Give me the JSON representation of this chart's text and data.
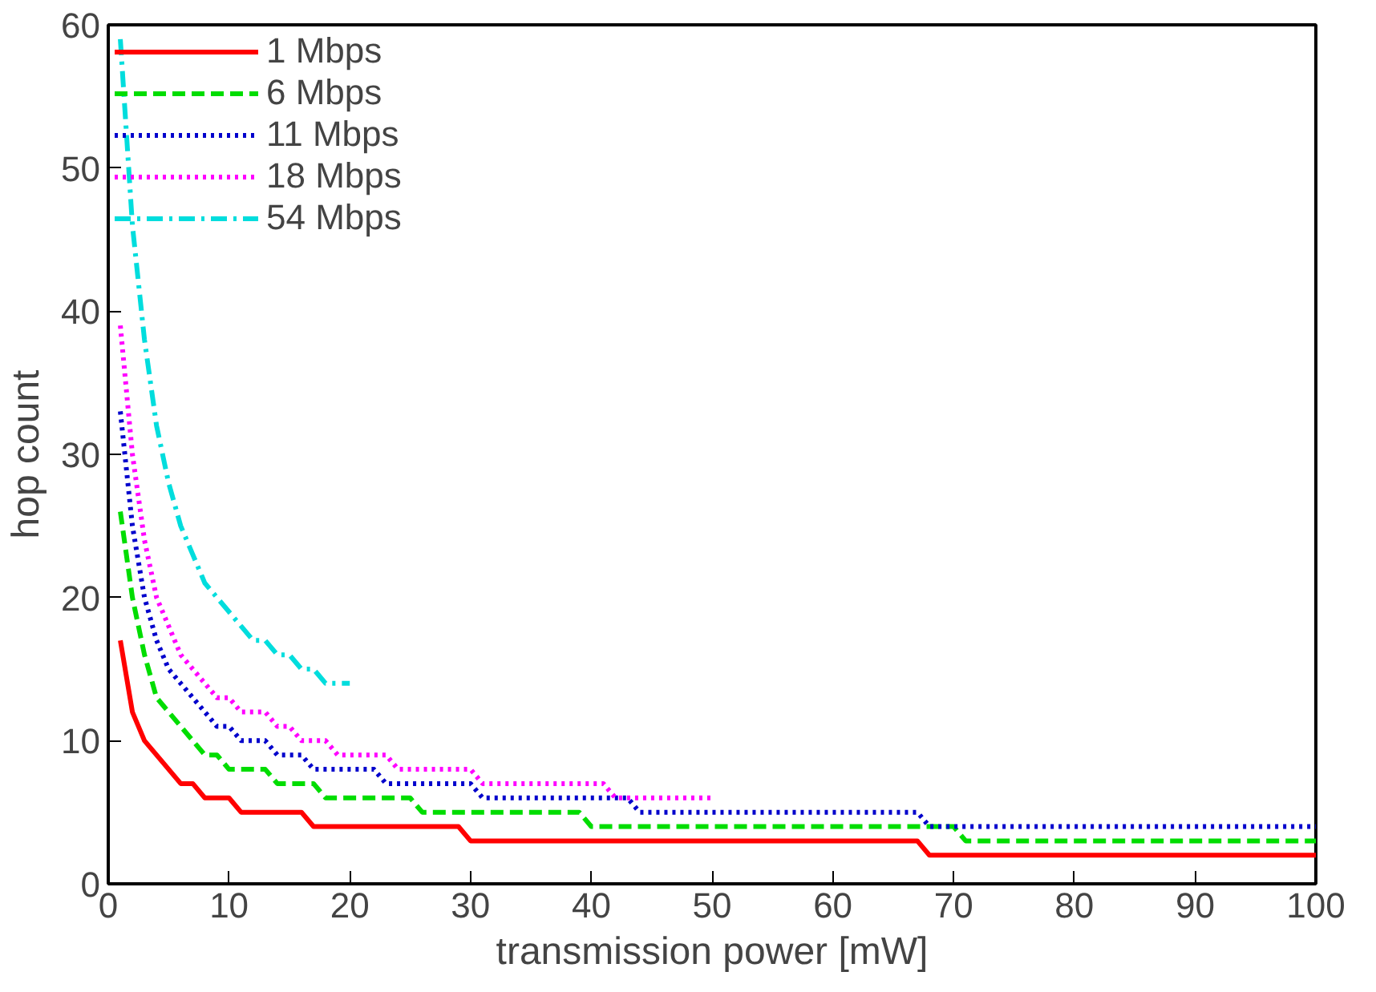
{
  "chart_data": {
    "type": "line",
    "xlabel": "transmission power [mW]",
    "ylabel": "hop count",
    "xlim": [
      0,
      100
    ],
    "ylim": [
      0,
      60
    ],
    "xticks": [
      0,
      10,
      20,
      30,
      40,
      50,
      60,
      70,
      80,
      90,
      100
    ],
    "yticks": [
      0,
      10,
      20,
      30,
      40,
      50,
      60
    ],
    "grid": false,
    "legend": "top left",
    "marker": "none",
    "series": [
      {
        "name": "1 Mbps",
        "color": "#ff0000",
        "line_style": "solid",
        "x": [
          1,
          2,
          3,
          6,
          7,
          8,
          10,
          11,
          16,
          17,
          29,
          30,
          67,
          68,
          100
        ],
        "values": [
          17,
          12,
          10,
          7,
          7,
          6,
          6,
          5,
          5,
          4,
          4,
          3,
          3,
          2,
          2
        ]
      },
      {
        "name": "6 Mbps",
        "color": "#00dd00",
        "line_style": "dashed",
        "x": [
          1,
          2,
          3,
          4,
          5,
          6,
          7,
          8,
          9,
          10,
          13,
          14,
          17,
          18,
          25,
          26,
          39,
          40,
          70,
          71,
          100
        ],
        "values": [
          26,
          20,
          16,
          13,
          12,
          11,
          10,
          9,
          9,
          8,
          8,
          7,
          7,
          6,
          6,
          5,
          5,
          4,
          4,
          3,
          3
        ]
      },
      {
        "name": "11 Mbps",
        "color": "#0000cc",
        "line_style": "dotted",
        "x": [
          1,
          2,
          3,
          4,
          5,
          6,
          7,
          8,
          9,
          10,
          11,
          13,
          14,
          16,
          17,
          22,
          23,
          30,
          31,
          43,
          44,
          67,
          68,
          100
        ],
        "values": [
          33,
          25,
          20,
          17,
          15,
          14,
          13,
          12,
          11,
          11,
          10,
          10,
          9,
          9,
          8,
          8,
          7,
          7,
          6,
          6,
          5,
          5,
          4,
          4
        ]
      },
      {
        "name": "18 Mbps",
        "color": "#ff00ff",
        "line_style": "dotted",
        "x": [
          1,
          2,
          3,
          4,
          5,
          6,
          7,
          8,
          9,
          10,
          11,
          13,
          14,
          15,
          16,
          18,
          19,
          23,
          24,
          30,
          31,
          41,
          42,
          50
        ],
        "values": [
          39,
          30,
          24,
          20,
          18,
          16,
          15,
          14,
          13,
          13,
          12,
          12,
          11,
          11,
          10,
          10,
          9,
          9,
          8,
          8,
          7,
          7,
          6,
          6
        ]
      },
      {
        "name": "54 Mbps",
        "color": "#00dddd",
        "line_style": "dashdot",
        "x": [
          1,
          2,
          3,
          4,
          5,
          6,
          7,
          8,
          9,
          10,
          11,
          12,
          13,
          14,
          15,
          16,
          17,
          18,
          20
        ],
        "values": [
          59,
          46,
          38,
          32,
          28,
          25,
          23,
          21,
          20,
          19,
          18,
          17,
          17,
          16,
          16,
          15,
          15,
          14,
          14
        ]
      }
    ]
  }
}
